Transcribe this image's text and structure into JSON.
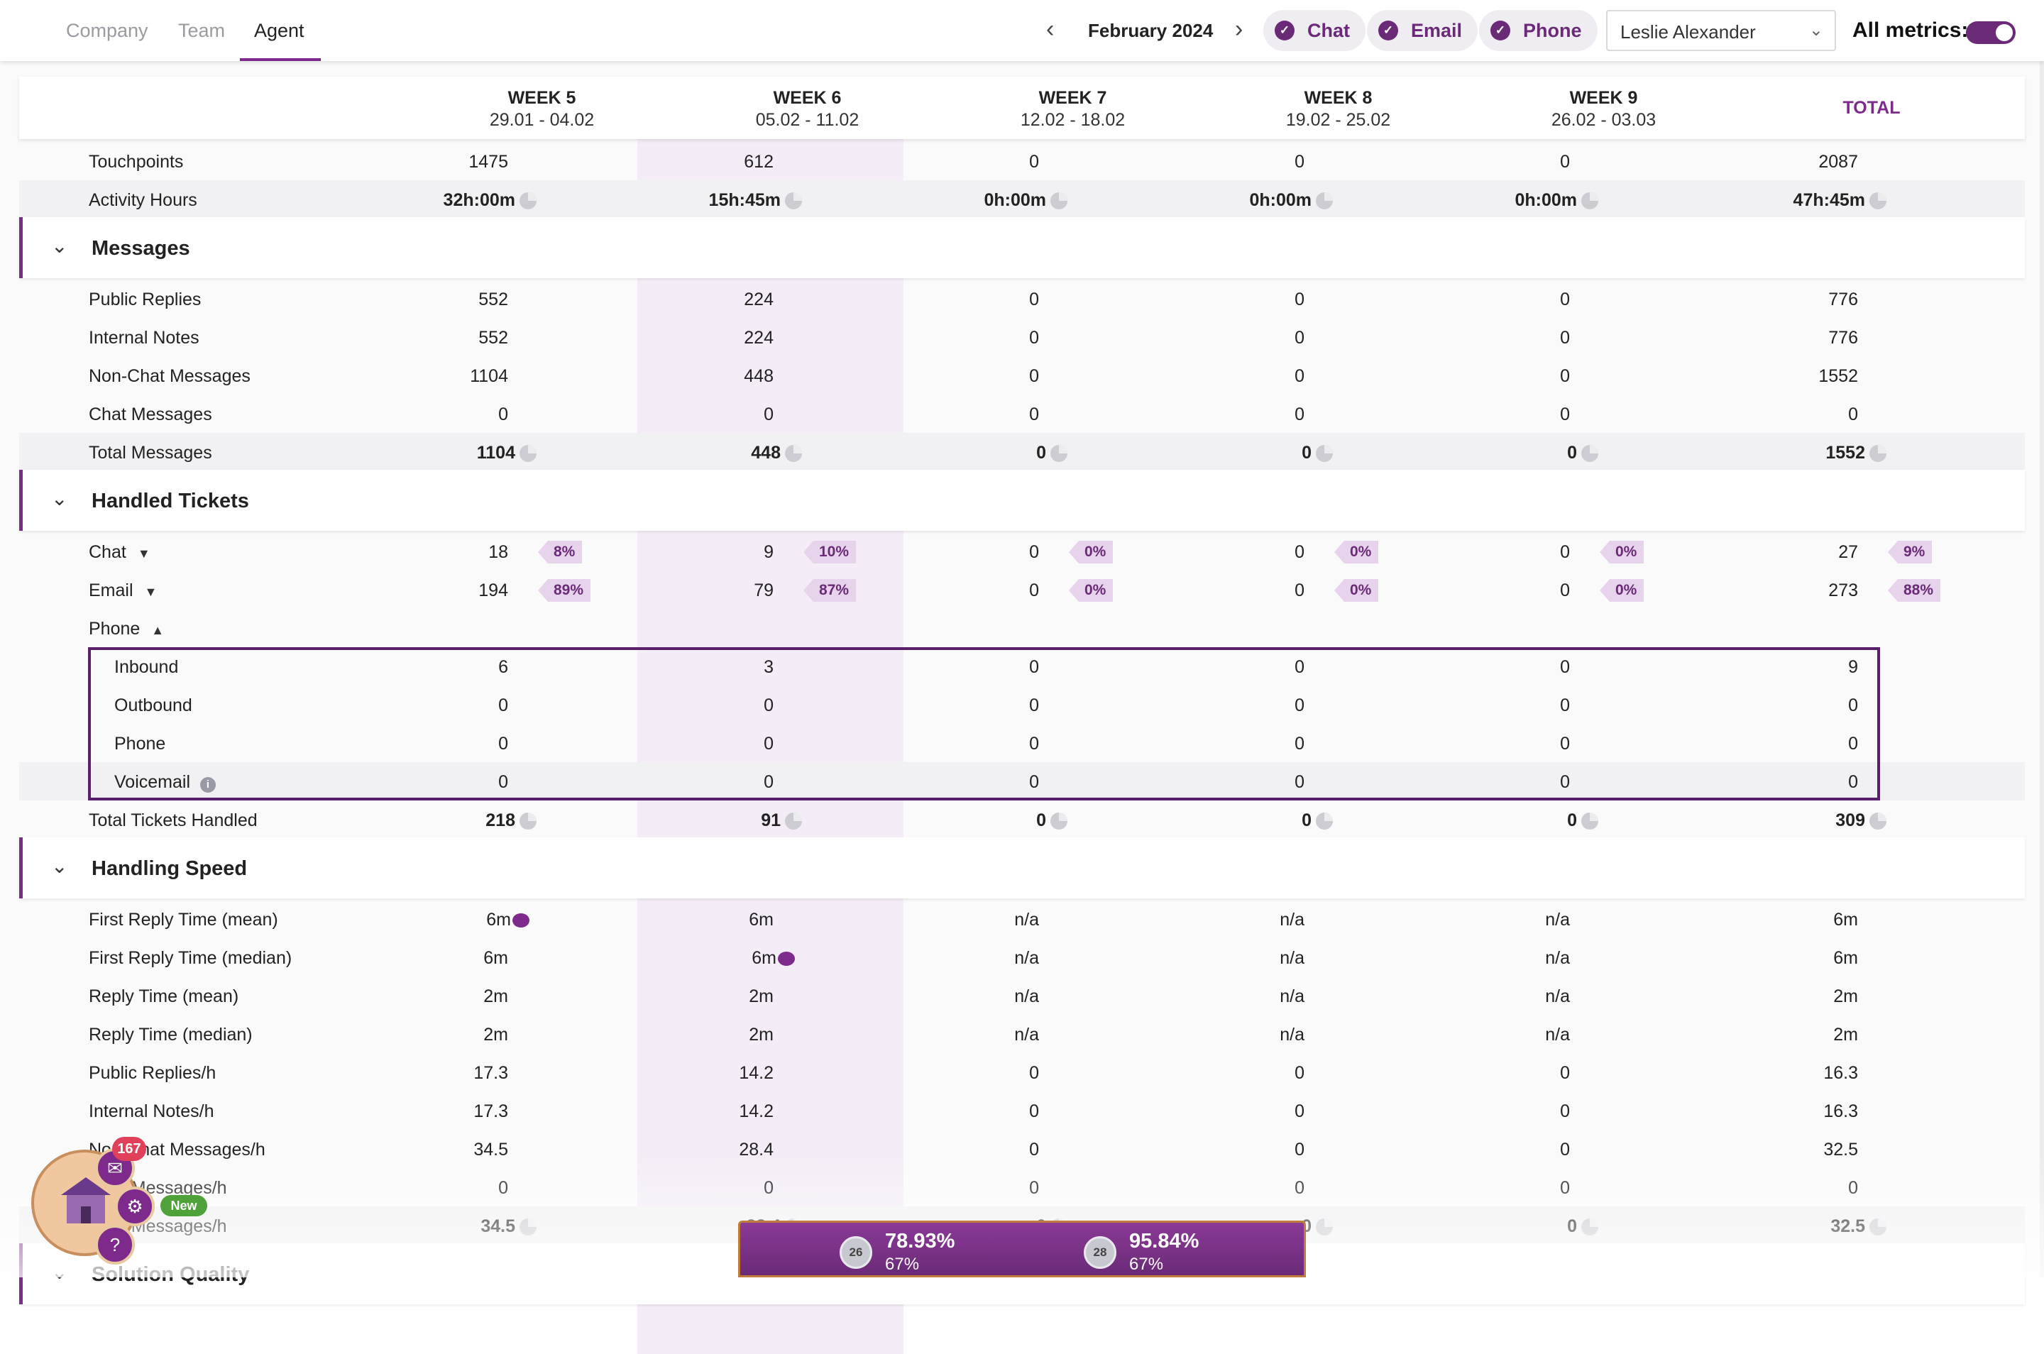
{
  "tabs": [
    "Company",
    "Team",
    "Agent"
  ],
  "active_tab": "Agent",
  "month": "February 2024",
  "channels": [
    "Chat",
    "Email",
    "Phone"
  ],
  "agent": "Leslie Alexander",
  "all_metrics_label": "All metrics:",
  "all_metrics_on": true,
  "colors": {
    "accent": "#7d2a8c",
    "highlight_column": "#f4ecf6",
    "badge_bg": "#e8d3ec"
  },
  "columns": [
    {
      "week": "WEEK 5",
      "dates": "29.01 - 04.02"
    },
    {
      "week": "WEEK 6",
      "dates": "05.02 - 11.02"
    },
    {
      "week": "WEEK 7",
      "dates": "12.02 - 18.02"
    },
    {
      "week": "WEEK 8",
      "dates": "19.02 - 25.02"
    },
    {
      "week": "WEEK 9",
      "dates": "26.02 - 03.03"
    }
  ],
  "total_label": "TOTAL",
  "top_rows": [
    {
      "label": "Touchpoints",
      "values": [
        "1475",
        "612",
        "0",
        "0",
        "0",
        "2087"
      ]
    },
    {
      "label": "Activity Hours",
      "values": [
        "32h:00m",
        "15h:45m",
        "0h:00m",
        "0h:00m",
        "0h:00m",
        "47h:45m"
      ]
    }
  ],
  "sections": {
    "messages": {
      "title": "Messages",
      "rows": [
        {
          "label": "Public Replies",
          "values": [
            "552",
            "224",
            "0",
            "0",
            "0",
            "776"
          ]
        },
        {
          "label": "Internal Notes",
          "values": [
            "552",
            "224",
            "0",
            "0",
            "0",
            "776"
          ]
        },
        {
          "label": "Non-Chat Messages",
          "values": [
            "1104",
            "448",
            "0",
            "0",
            "0",
            "1552"
          ]
        },
        {
          "label": "Chat Messages",
          "values": [
            "0",
            "0",
            "0",
            "0",
            "0",
            "0"
          ]
        },
        {
          "label": "Total Messages",
          "values": [
            "1104",
            "448",
            "0",
            "0",
            "0",
            "1552"
          ]
        }
      ]
    },
    "handled": {
      "title": "Handled Tickets",
      "chat": {
        "label": "Chat",
        "values": [
          "18",
          "9",
          "0",
          "0",
          "0",
          "27"
        ],
        "pcts": [
          "8%",
          "10%",
          "0%",
          "0%",
          "0%",
          "9%"
        ]
      },
      "email": {
        "label": "Email",
        "values": [
          "194",
          "79",
          "0",
          "0",
          "0",
          "273"
        ],
        "pcts": [
          "89%",
          "87%",
          "0%",
          "0%",
          "0%",
          "88%"
        ]
      },
      "phone_label": "Phone",
      "phone_rows": [
        {
          "label": "Inbound",
          "values": [
            "6",
            "3",
            "0",
            "0",
            "0",
            "9"
          ]
        },
        {
          "label": "Outbound",
          "values": [
            "0",
            "0",
            "0",
            "0",
            "0",
            "0"
          ]
        },
        {
          "label": "Phone",
          "values": [
            "0",
            "0",
            "0",
            "0",
            "0",
            "0"
          ]
        },
        {
          "label": "Voicemail",
          "values": [
            "0",
            "0",
            "0",
            "0",
            "0",
            "0"
          ]
        }
      ],
      "total": {
        "label": "Total Tickets Handled",
        "values": [
          "218",
          "91",
          "0",
          "0",
          "0",
          "309"
        ]
      }
    },
    "speed": {
      "title": "Handling Speed",
      "rows": [
        {
          "label": "First Reply Time (mean)",
          "values": [
            "6m",
            "6m",
            "n/a",
            "n/a",
            "n/a",
            "6m"
          ]
        },
        {
          "label": "First Reply Time (median)",
          "values": [
            "6m",
            "6m",
            "n/a",
            "n/a",
            "n/a",
            "6m"
          ]
        },
        {
          "label": "Reply Time (mean)",
          "values": [
            "2m",
            "2m",
            "n/a",
            "n/a",
            "n/a",
            "2m"
          ]
        },
        {
          "label": "Reply Time (median)",
          "values": [
            "2m",
            "2m",
            "n/a",
            "n/a",
            "n/a",
            "2m"
          ]
        },
        {
          "label": "Public Replies/h",
          "values": [
            "17.3",
            "14.2",
            "0",
            "0",
            "0",
            "16.3"
          ]
        },
        {
          "label": "Internal Notes/h",
          "values": [
            "17.3",
            "14.2",
            "0",
            "0",
            "0",
            "16.3"
          ]
        },
        {
          "label": "Non-Chat Messages/h",
          "values": [
            "34.5",
            "28.4",
            "0",
            "0",
            "0",
            "32.5"
          ]
        },
        {
          "label": "Chat Messages/h",
          "values": [
            "0",
            "0",
            "0",
            "0",
            "0",
            "0"
          ]
        },
        {
          "label": "Total Messages/h",
          "values": [
            "34.5",
            "28.4",
            "0",
            "0",
            "0",
            "32.5"
          ]
        }
      ]
    },
    "quality": {
      "title": "Solution Quality"
    }
  },
  "widget": {
    "notifications": "167",
    "new_label": "New"
  },
  "bottom_bar": [
    {
      "rank": "26",
      "pct": "78.93%",
      "sub": "67%"
    },
    {
      "rank": "28",
      "pct": "95.84%",
      "sub": "67%"
    }
  ]
}
